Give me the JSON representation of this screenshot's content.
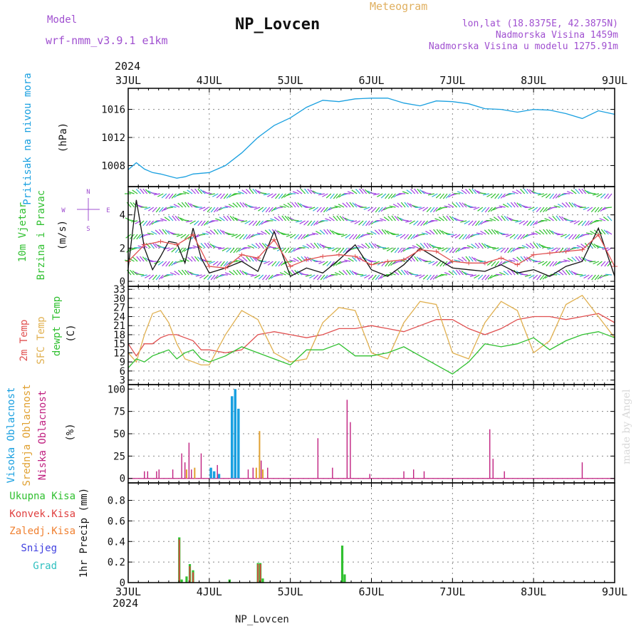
{
  "header": {
    "model_label": "Model",
    "model_name": "wrf-nmm_v3.9.1 e1km",
    "station": "NP_Lovcen",
    "product": "Meteogram",
    "lonlat": "lon,lat (18.8375E, 42.3875N)",
    "elevation": "Nadmorska Visina 1459m",
    "model_elevation": "Nadmorska Visina u modelu 1275.91m",
    "year_top": "2024",
    "year_bottom": "2024",
    "footer_station": "NP_Lovcen",
    "credit": "made by Angel"
  },
  "colors": {
    "pressure": "#1aa0e0",
    "wind_green": "#30c030",
    "wind_dark": "#208040",
    "wind_purple": "#a040e0",
    "temp2m": "#e05050",
    "sfc": "#e0b050",
    "dewpt": "#30c030",
    "high_cloud": "#1aa0e0",
    "mid_cloud": "#e0a030",
    "low_cloud": "#c02080",
    "total_precip": "#30c030",
    "conv_precip": "#e04040",
    "frz_precip": "#f08030",
    "snow": "#4040e0",
    "hail": "#30c0c0"
  },
  "chart_data": [
    {
      "id": "pressure",
      "type": "line",
      "ylabel": [
        "Pritisak na nivou mora",
        "(hPa)"
      ],
      "x_ticks": [
        "3JUL",
        "4JUL",
        "5JUL",
        "6JUL",
        "7JUL",
        "8JUL",
        "9JUL"
      ],
      "ylim": [
        1005,
        1019
      ],
      "yticks": [
        1008,
        1012,
        1016
      ],
      "grid": true,
      "series": [
        {
          "x": [
            0,
            0.1,
            0.2,
            0.3,
            0.4,
            0.5,
            0.6,
            0.7,
            0.8,
            0.9,
            1.0,
            1.2,
            1.4,
            1.6,
            1.8,
            2.0,
            2.2,
            2.4,
            2.6,
            2.8,
            3.0,
            3.2,
            3.4,
            3.6,
            3.8,
            4.0,
            4.2,
            4.4,
            4.6,
            4.8,
            5.0,
            5.2,
            5.4,
            5.6,
            5.8,
            6.0
          ],
          "y": [
            1007.4,
            1008.4,
            1007.5,
            1007.0,
            1006.8,
            1006.5,
            1006.2,
            1006.4,
            1006.8,
            1006.9,
            1007.0,
            1008.0,
            1009.8,
            1012.0,
            1013.7,
            1014.8,
            1016.3,
            1017.3,
            1017.1,
            1017.5,
            1017.6,
            1017.6,
            1016.9,
            1016.5,
            1017.2,
            1017.1,
            1016.8,
            1016.1,
            1016.0,
            1015.6,
            1016.0,
            1015.9,
            1015.4,
            1014.7,
            1015.8,
            1015.3
          ]
        }
      ]
    },
    {
      "id": "wind",
      "type": "line",
      "ylabel": [
        "10m Vjetar",
        "Brzina i Pravac",
        "(m/s)"
      ],
      "compass": {
        "n": "N",
        "e": "E",
        "s": "S",
        "w": "W"
      },
      "ylim": [
        -0.3,
        5.7
      ],
      "yticks": [
        0,
        2,
        4
      ],
      "grid": true,
      "series": [
        {
          "x": [
            0,
            0.1,
            0.2,
            0.3,
            0.4,
            0.5,
            0.6,
            0.7,
            0.8,
            0.9,
            1.0,
            1.2,
            1.4,
            1.6,
            1.8,
            2.0,
            2.2,
            2.4,
            2.6,
            2.8,
            3.0,
            3.2,
            3.4,
            3.6,
            3.8,
            4.0,
            4.2,
            4.4,
            4.6,
            4.8,
            5.0,
            5.2,
            5.4,
            5.6,
            5.8,
            6.0
          ],
          "y": [
            0.8,
            4.9,
            2.0,
            0.7,
            1.5,
            2.4,
            2.3,
            1.1,
            3.2,
            1.4,
            0.5,
            0.8,
            1.2,
            0.6,
            3.0,
            0.3,
            0.8,
            0.5,
            1.3,
            2.2,
            0.7,
            0.3,
            1.0,
            2.0,
            1.4,
            0.8,
            0.7,
            0.6,
            1.0,
            0.5,
            0.7,
            0.3,
            0.9,
            1.2,
            3.2,
            0.3
          ]
        },
        {
          "x": [
            0,
            0.2,
            0.4,
            0.6,
            0.8,
            1.0,
            1.2,
            1.4,
            1.6,
            1.8,
            2.0,
            2.2,
            2.4,
            2.6,
            2.8,
            3.0,
            3.2,
            3.4,
            3.6,
            3.8,
            4.0,
            4.2,
            4.4,
            4.6,
            4.8,
            5.0,
            5.2,
            5.4,
            5.6,
            5.8,
            6.0
          ],
          "y": [
            1.2,
            2.2,
            2.4,
            2.2,
            2.8,
            0.9,
            0.8,
            1.6,
            1.4,
            2.5,
            0.9,
            1.3,
            1.5,
            1.6,
            1.5,
            1.0,
            1.2,
            1.3,
            1.9,
            1.8,
            1.2,
            1.1,
            1.1,
            1.4,
            1.0,
            1.6,
            1.7,
            1.8,
            1.9,
            2.8,
            0.9
          ]
        }
      ]
    },
    {
      "id": "temperature",
      "type": "line",
      "ylabel": [
        "2m Temp",
        "SFC Temp",
        "dewpt Temp",
        "(C)"
      ],
      "ylim": [
        1.5,
        34
      ],
      "yticks": [
        3,
        6,
        9,
        12,
        15,
        18,
        21,
        24,
        27,
        30,
        33
      ],
      "grid": true,
      "series": [
        {
          "name": "2m Temp",
          "x": [
            0,
            0.1,
            0.2,
            0.3,
            0.4,
            0.5,
            0.6,
            0.7,
            0.8,
            0.9,
            1.0,
            1.2,
            1.4,
            1.6,
            1.8,
            2.0,
            2.2,
            2.4,
            2.6,
            2.8,
            3.0,
            3.2,
            3.4,
            3.6,
            3.8,
            4.0,
            4.2,
            4.4,
            4.6,
            4.8,
            5.0,
            5.2,
            5.4,
            5.6,
            5.8,
            6.0
          ],
          "y": [
            15,
            11,
            15,
            15,
            17,
            18,
            18,
            17,
            16,
            13,
            13,
            12,
            13,
            18,
            19,
            18,
            17,
            18,
            20,
            20,
            21,
            20,
            19,
            21,
            23,
            23,
            20,
            18,
            20,
            23,
            24,
            24,
            23,
            24,
            25,
            22
          ]
        },
        {
          "name": "SFC Temp",
          "x": [
            0,
            0.1,
            0.2,
            0.3,
            0.4,
            0.5,
            0.6,
            0.7,
            0.8,
            0.9,
            1.0,
            1.2,
            1.4,
            1.6,
            1.8,
            2.0,
            2.2,
            2.4,
            2.6,
            2.8,
            3.0,
            3.2,
            3.4,
            3.6,
            3.8,
            4.0,
            4.2,
            4.4,
            4.6,
            4.8,
            5.0,
            5.2,
            5.4,
            5.6,
            5.8,
            6.0
          ],
          "y": [
            12,
            9,
            18,
            25,
            26,
            22,
            15,
            10,
            9,
            8,
            8,
            18,
            26,
            23,
            12,
            9,
            10,
            22,
            27,
            26,
            12,
            10,
            22,
            29,
            28,
            12,
            10,
            22,
            29,
            26,
            12,
            16,
            28,
            31,
            24,
            17
          ]
        },
        {
          "name": "dewpt Temp",
          "x": [
            0,
            0.1,
            0.2,
            0.3,
            0.4,
            0.5,
            0.6,
            0.7,
            0.8,
            0.9,
            1.0,
            1.2,
            1.4,
            1.6,
            1.8,
            2.0,
            2.2,
            2.4,
            2.6,
            2.8,
            3.0,
            3.2,
            3.4,
            3.6,
            3.8,
            4.0,
            4.2,
            4.4,
            4.6,
            4.8,
            5.0,
            5.2,
            5.4,
            5.6,
            5.8,
            6.0
          ],
          "y": [
            7,
            10,
            9,
            11,
            12,
            13,
            10,
            12,
            13,
            10,
            9,
            11,
            14,
            12,
            10,
            8,
            13,
            13,
            15,
            11,
            11,
            12,
            14,
            11,
            8,
            5,
            9,
            15,
            14,
            15,
            17,
            13,
            16,
            18,
            19,
            17
          ]
        }
      ]
    },
    {
      "id": "clouds",
      "type": "bar",
      "ylabel": [
        "Visoka Oblacnost",
        "Srednja Oblacnost",
        "Niska Oblacnost",
        "(%)"
      ],
      "ylim": [
        -5,
        105
      ],
      "yticks": [
        0,
        25,
        50,
        75,
        100
      ],
      "grid": true,
      "series": [
        {
          "name": "Visoka Oblacnost",
          "x": [
            1.02,
            1.06,
            1.12,
            1.28,
            1.32,
            1.36
          ],
          "values": [
            12,
            8,
            5,
            92,
            100,
            78
          ]
        },
        {
          "name": "Srednja Oblacnost",
          "x": [
            0.72,
            0.82,
            1.58,
            1.62,
            1.66
          ],
          "values": [
            10,
            12,
            12,
            53,
            10
          ]
        },
        {
          "name": "Niska Oblacnost",
          "x": [
            0.2,
            0.24,
            0.35,
            0.38,
            0.55,
            0.66,
            0.7,
            0.75,
            0.78,
            0.9,
            1.1,
            1.48,
            1.54,
            1.64,
            1.72,
            2.34,
            2.52,
            2.7,
            2.74,
            2.98,
            3.4,
            3.52,
            3.65,
            4.46,
            4.5,
            4.64,
            5.6
          ],
          "values": [
            8,
            8,
            8,
            10,
            10,
            28,
            18,
            40,
            10,
            28,
            15,
            10,
            12,
            20,
            12,
            45,
            12,
            88,
            63,
            5,
            8,
            10,
            8,
            55,
            22,
            8,
            18
          ]
        }
      ]
    },
    {
      "id": "precip",
      "type": "bar",
      "ylabel": [
        "Ukupna Kisa",
        "Konvek.Kisa",
        "Zaledj.Kisa",
        "Snijeg",
        "Grad",
        "1hr Precip (mm)"
      ],
      "ylim": [
        0,
        0.97
      ],
      "yticks": [
        0,
        0.2,
        0.4,
        0.6,
        0.8
      ],
      "yticklabels": [
        "0",
        "0.2",
        "0.4",
        "0.6",
        "0.8"
      ],
      "x_ticks": [
        "3JUL",
        "4JUL",
        "5JUL",
        "6JUL",
        "7JUL",
        "8JUL",
        "9JUL"
      ],
      "grid": true,
      "series": [
        {
          "name": "Ukupna Kisa",
          "x": [
            0.63,
            0.66,
            0.72,
            0.76,
            0.8,
            1.25,
            1.6,
            1.63,
            1.66,
            2.64,
            2.67
          ],
          "values": [
            0.44,
            0.03,
            0.06,
            0.18,
            0.12,
            0.03,
            0.19,
            0.19,
            0.04,
            0.36,
            0.08
          ]
        },
        {
          "name": "Konvek.Kisa",
          "x": [
            0.63,
            0.76,
            0.8,
            1.6,
            1.63
          ],
          "values": [
            0.42,
            0.16,
            0.1,
            0.18,
            0.18
          ]
        }
      ]
    }
  ]
}
